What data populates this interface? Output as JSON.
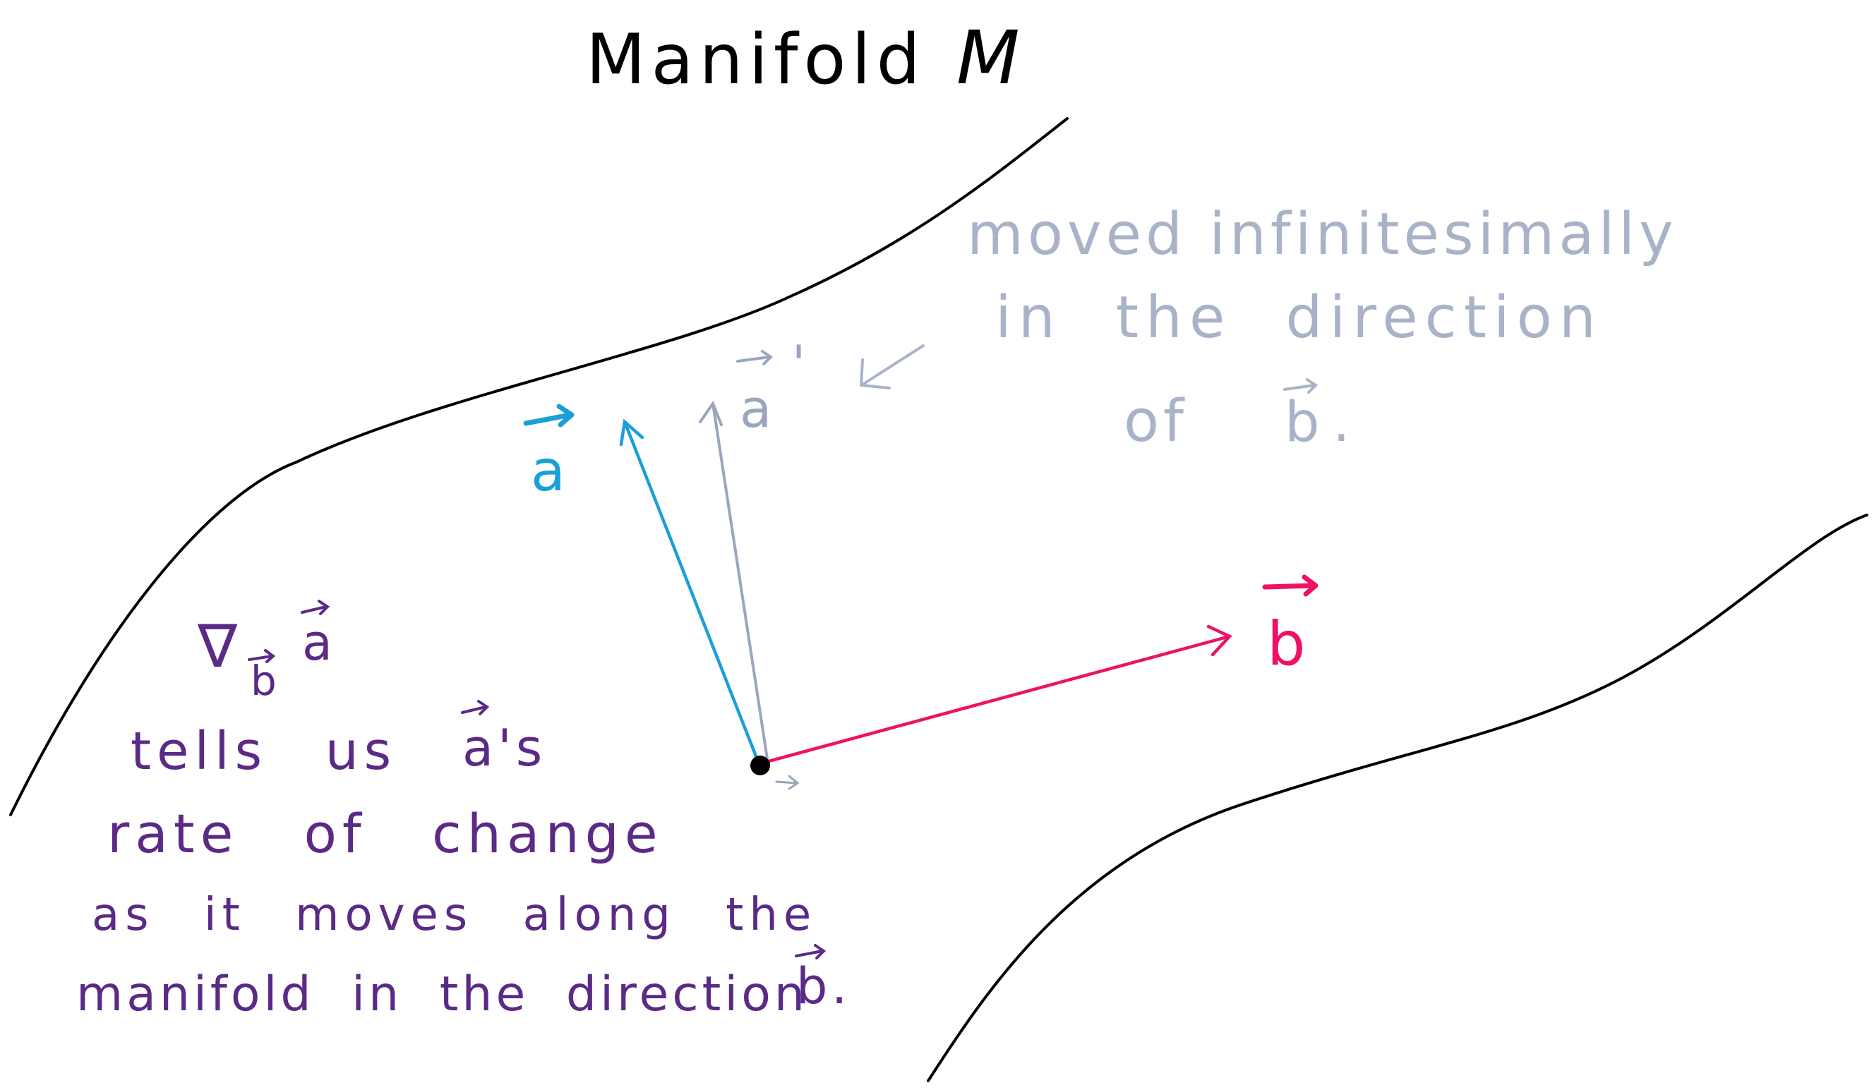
{
  "title": {
    "text": "Manifold",
    "symbol": "M"
  },
  "vectors": {
    "a": {
      "label": "a",
      "color": "#1aa0d8"
    },
    "a_moved": {
      "label": "a",
      "prime": "'",
      "color": "#9aa6be"
    },
    "b": {
      "label": "b",
      "color": "#ee1166"
    }
  },
  "note": {
    "lines": [
      "moved infinitesimally",
      "in the direction",
      "of"
    ],
    "vector_label": "b",
    "period": ".",
    "color": "#a9b3c8"
  },
  "explanation": {
    "nabla": "∇",
    "nabla_sub": "b",
    "nabla_vec": "a",
    "line1_text": "tells us",
    "line1_vec": "a",
    "line1_suffix": "'s",
    "line2": "rate of change",
    "line3": "as it moves along the",
    "line4_text": "manifold in the direction",
    "line4_vec": "b",
    "line4_suffix": ".",
    "color": "#5b2a86"
  },
  "colors": {
    "ink": "#000000",
    "a_vector": "#1aa0d8",
    "b_vector": "#ee1166",
    "moved_vector": "#9aa6be",
    "explanation": "#5b2a86"
  }
}
